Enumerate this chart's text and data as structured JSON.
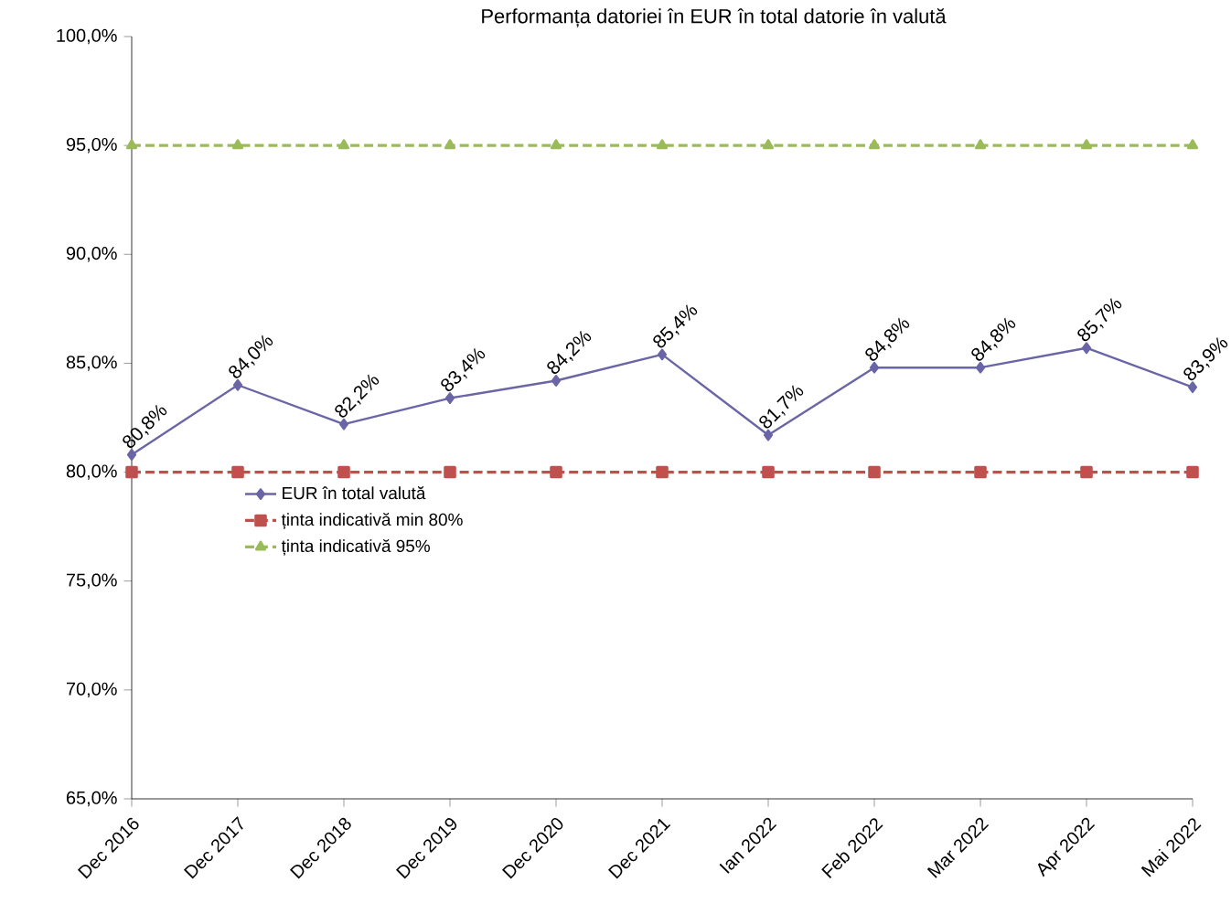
{
  "chart_data": {
    "type": "line",
    "title": "Performanța datoriei în EUR în total datorie în valută",
    "categories": [
      "Dec 2016",
      "Dec 2017",
      "Dec 2018",
      "Dec 2019",
      "Dec 2020",
      "Dec 2021",
      "Ian 2022",
      "Feb 2022",
      "Mar 2022",
      "Apr 2022",
      "Mai 2022"
    ],
    "series": [
      {
        "name": "EUR în total valută",
        "color": "#6a65a6",
        "marker": "diamond",
        "line_style": "solid",
        "values": [
          80.8,
          84.0,
          82.2,
          83.4,
          84.2,
          85.4,
          81.7,
          84.8,
          84.8,
          85.7,
          83.9
        ],
        "value_labels": [
          "80,8%",
          "84,0%",
          "82,2%",
          "83,4%",
          "84,2%",
          "85,4%",
          "81,7%",
          "84,8%",
          "84,8%",
          "85,7%",
          "83,9%"
        ]
      },
      {
        "name": "ținta indicativă min 80%",
        "color": "#c0504d",
        "marker": "square",
        "line_style": "dashed",
        "values": [
          80,
          80,
          80,
          80,
          80,
          80,
          80,
          80,
          80,
          80,
          80
        ]
      },
      {
        "name": "ținta indicativă  95%",
        "color": "#9bbb59",
        "marker": "triangle",
        "line_style": "dashed",
        "values": [
          95,
          95,
          95,
          95,
          95,
          95,
          95,
          95,
          95,
          95,
          95
        ]
      }
    ],
    "ylim": [
      65,
      100
    ],
    "yticks": [
      {
        "value": 65,
        "label": "65,0%"
      },
      {
        "value": 70,
        "label": "70,0%"
      },
      {
        "value": 75,
        "label": "75,0%"
      },
      {
        "value": 80,
        "label": "80,0%"
      },
      {
        "value": 85,
        "label": "85,0%"
      },
      {
        "value": 90,
        "label": "90,0%"
      },
      {
        "value": 95,
        "label": "95,0%"
      },
      {
        "value": 100,
        "label": "100,0%"
      }
    ],
    "grid": false,
    "legend": "left"
  }
}
